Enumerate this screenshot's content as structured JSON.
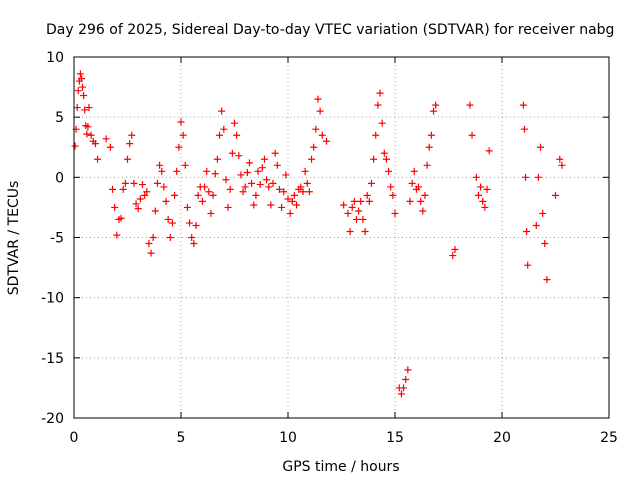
{
  "chart_data": {
    "type": "scatter",
    "title": "Day 296 of 2025, Sidereal Day-to-day VTEC variation (SDTVAR) for receiver nabg",
    "xlabel": "GPS time / hours",
    "ylabel": "SDTVAR / TECUs",
    "xlim": [
      0,
      25
    ],
    "ylim": [
      -20,
      10
    ],
    "x_ticks": [
      0,
      5,
      10,
      15,
      20,
      25
    ],
    "y_ticks": [
      -20,
      -15,
      -10,
      -5,
      0,
      5,
      10
    ],
    "grid": true,
    "marker": "+",
    "color": "#ff0000",
    "series": [
      {
        "name": "SDTVAR",
        "x": [
          0.05,
          0.1,
          0.15,
          0.2,
          0.25,
          0.3,
          0.35,
          0.4,
          0.45,
          0.5,
          0.55,
          0.6,
          0.65,
          0.7,
          0.8,
          0.9,
          1.0,
          1.1,
          1.5,
          1.7,
          1.8,
          1.9,
          2.0,
          2.1,
          2.2,
          2.3,
          2.4,
          2.5,
          2.6,
          2.7,
          2.8,
          2.9,
          3.0,
          3.1,
          3.2,
          3.3,
          3.4,
          3.5,
          3.6,
          3.7,
          3.8,
          3.9,
          4.0,
          4.1,
          4.2,
          4.3,
          4.4,
          4.5,
          4.6,
          4.7,
          4.8,
          4.9,
          5.0,
          5.1,
          5.2,
          5.3,
          5.4,
          5.5,
          5.6,
          5.7,
          5.8,
          5.9,
          6.0,
          6.1,
          6.2,
          6.3,
          6.4,
          6.5,
          6.6,
          6.7,
          6.8,
          6.9,
          7.0,
          7.1,
          7.2,
          7.3,
          7.4,
          7.5,
          7.6,
          7.7,
          7.8,
          7.9,
          8.0,
          8.1,
          8.2,
          8.3,
          8.4,
          8.5,
          8.6,
          8.7,
          8.8,
          8.9,
          9.0,
          9.1,
          9.2,
          9.3,
          9.4,
          9.5,
          9.6,
          9.7,
          9.8,
          9.9,
          10.0,
          10.1,
          10.2,
          10.3,
          10.4,
          10.5,
          10.6,
          10.7,
          10.8,
          10.9,
          11.0,
          11.1,
          11.2,
          11.3,
          11.4,
          11.5,
          11.6,
          11.8,
          12.6,
          12.8,
          12.9,
          13.0,
          13.1,
          13.2,
          13.3,
          13.4,
          13.5,
          13.6,
          13.7,
          13.8,
          13.9,
          14.0,
          14.1,
          14.2,
          14.3,
          14.4,
          14.5,
          14.6,
          14.7,
          14.8,
          14.9,
          15.0,
          15.2,
          15.3,
          15.4,
          15.5,
          15.6,
          15.7,
          15.8,
          15.9,
          16.0,
          16.1,
          16.2,
          16.3,
          16.4,
          16.5,
          16.6,
          16.7,
          16.8,
          16.9,
          17.7,
          17.8,
          18.5,
          18.6,
          18.8,
          18.9,
          19.0,
          19.1,
          19.2,
          19.3,
          19.4,
          21.0,
          21.05,
          21.1,
          21.15,
          21.2,
          21.6,
          21.7,
          21.8,
          21.9,
          22.0,
          22.1,
          22.5,
          22.7,
          22.8
        ],
        "y": [
          2.6,
          4.0,
          5.8,
          7.2,
          8.0,
          8.6,
          8.2,
          7.5,
          6.8,
          5.6,
          4.3,
          3.6,
          4.2,
          5.8,
          3.5,
          3.0,
          2.8,
          1.5,
          3.2,
          2.5,
          -1.0,
          -2.5,
          -4.8,
          -3.5,
          -3.4,
          -1.0,
          -0.5,
          1.5,
          2.8,
          3.5,
          -0.5,
          -2.2,
          -2.6,
          -1.8,
          -0.6,
          -1.5,
          -1.2,
          -5.5,
          -6.3,
          -5.0,
          -2.8,
          -0.5,
          1.0,
          0.5,
          -0.8,
          -2.0,
          -3.5,
          -5.0,
          -3.8,
          -1.5,
          0.5,
          2.5,
          4.6,
          3.5,
          1.0,
          -2.5,
          -3.8,
          -5.0,
          -5.5,
          -4.0,
          -1.5,
          -0.8,
          -2.0,
          -0.8,
          0.5,
          -1.2,
          -3.0,
          -1.5,
          0.3,
          1.5,
          3.5,
          5.5,
          4.0,
          -0.2,
          -2.5,
          -1.0,
          2.0,
          4.5,
          3.5,
          1.8,
          0.2,
          -1.2,
          -0.8,
          0.4,
          1.2,
          -0.5,
          -2.3,
          -1.5,
          0.5,
          -0.6,
          0.8,
          1.5,
          -0.2,
          -0.8,
          -2.3,
          -0.5,
          2.0,
          1.0,
          -1.0,
          -2.5,
          -1.2,
          0.2,
          -1.8,
          -3.0,
          -2.0,
          -1.5,
          -2.3,
          -1.0,
          -0.8,
          -1.2,
          0.5,
          -0.5,
          -1.2,
          1.5,
          2.5,
          4.0,
          6.5,
          5.5,
          3.5,
          3.0,
          -2.3,
          -3.0,
          -4.5,
          -2.5,
          -2.0,
          -3.5,
          -2.8,
          -2.0,
          -3.5,
          -4.5,
          -1.5,
          -2.0,
          -0.5,
          1.5,
          3.5,
          6.0,
          7.0,
          4.5,
          2.0,
          1.5,
          0.5,
          -0.8,
          -1.5,
          -3.0,
          -17.5,
          -18.0,
          -17.5,
          -16.8,
          -16.0,
          -2.0,
          -0.5,
          0.5,
          -1.0,
          -0.8,
          -2.0,
          -2.8,
          -1.5,
          1.0,
          2.5,
          3.5,
          5.5,
          6.0,
          -6.5,
          -6.0,
          6.0,
          3.5,
          0.0,
          -1.5,
          -0.8,
          -2.0,
          -2.5,
          -1.0,
          2.2,
          6.0,
          4.0,
          0.0,
          -4.5,
          -7.3,
          -4.0,
          0.0,
          2.5,
          -3.0,
          -5.5,
          -8.5,
          -1.5,
          1.5,
          1.0
        ]
      }
    ]
  }
}
